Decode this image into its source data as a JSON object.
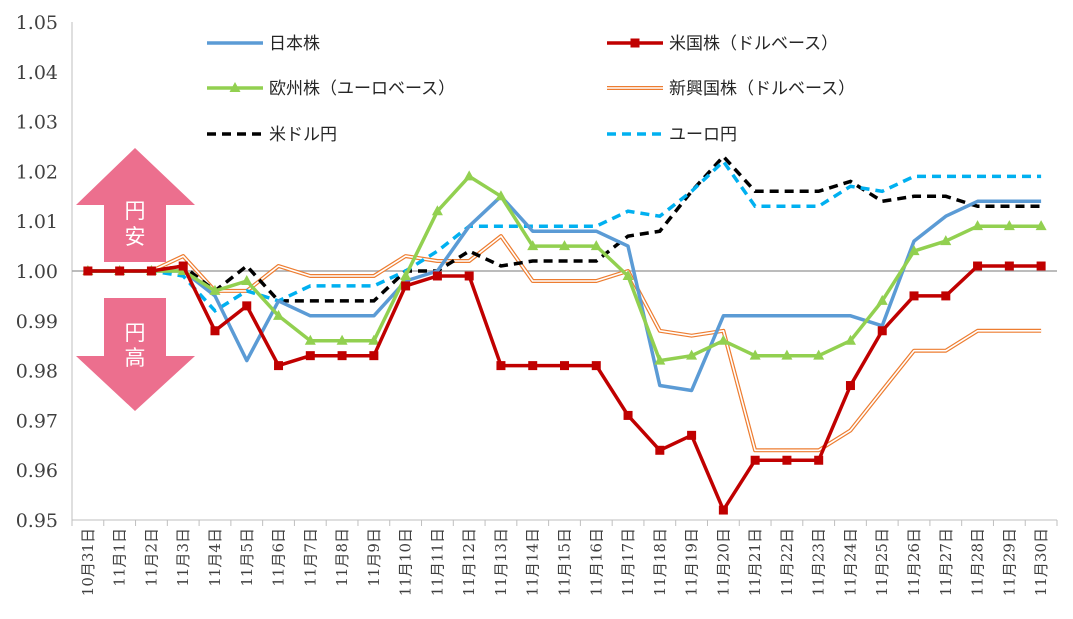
{
  "chart_data": {
    "type": "line",
    "title": "",
    "xlabel": "",
    "ylabel": "",
    "ylim": [
      0.95,
      1.05
    ],
    "yticks": [
      "0.95",
      "0.96",
      "0.97",
      "0.98",
      "0.99",
      "1.00",
      "1.01",
      "1.02",
      "1.03",
      "1.04",
      "1.05"
    ],
    "baseline": 1.0,
    "categories": [
      "10月31日",
      "11月1日",
      "11月2日",
      "11月3日",
      "11月4日",
      "11月5日",
      "11月6日",
      "11月7日",
      "11月8日",
      "11月9日",
      "11月10日",
      "11月11日",
      "11月12日",
      "11月13日",
      "11月14日",
      "11月15日",
      "11月16日",
      "11月17日",
      "11月18日",
      "11月19日",
      "11月20日",
      "11月21日",
      "11月22日",
      "11月23日",
      "11月24日",
      "11月25日",
      "11月26日",
      "11月27日",
      "11月28日",
      "11月29日",
      "11月30日"
    ],
    "series": [
      {
        "name": "日本株",
        "color": "#5b9bd5",
        "style": "solid",
        "values": [
          1.0,
          1.0,
          1.0,
          1.0,
          0.995,
          0.982,
          0.994,
          0.991,
          0.991,
          0.991,
          0.998,
          1.0,
          1.009,
          1.015,
          1.008,
          1.008,
          1.008,
          1.005,
          0.977,
          0.976,
          0.991,
          0.991,
          0.991,
          0.991,
          0.991,
          0.989,
          1.006,
          1.011,
          1.014,
          1.014,
          1.014
        ]
      },
      {
        "name": "米国株（ドルベース）",
        "color": "#c00000",
        "style": "square",
        "values": [
          1.0,
          1.0,
          1.0,
          1.001,
          0.988,
          0.993,
          0.981,
          0.983,
          0.983,
          0.983,
          0.997,
          0.999,
          0.999,
          0.981,
          0.981,
          0.981,
          0.981,
          0.971,
          0.964,
          0.967,
          0.952,
          0.962,
          0.962,
          0.962,
          0.977,
          0.988,
          0.995,
          0.995,
          1.001,
          1.001,
          1.001
        ]
      },
      {
        "name": "欧州株（ユーロベース）",
        "color": "#92d050",
        "style": "triangle",
        "values": [
          1.0,
          1.0,
          1.0,
          1.0,
          0.996,
          0.998,
          0.991,
          0.986,
          0.986,
          0.986,
          0.999,
          1.012,
          1.019,
          1.015,
          1.005,
          1.005,
          1.005,
          0.999,
          0.982,
          0.983,
          0.986,
          0.983,
          0.983,
          0.983,
          0.986,
          0.994,
          1.004,
          1.006,
          1.009,
          1.009,
          1.009
        ]
      },
      {
        "name": "新興国株（ドルベース）",
        "color": "#ed7d31",
        "style": "double",
        "values": [
          1.0,
          1.0,
          1.0,
          1.003,
          0.996,
          0.996,
          1.001,
          0.999,
          0.999,
          0.999,
          1.003,
          1.002,
          1.002,
          1.007,
          0.998,
          0.998,
          0.998,
          1.0,
          0.988,
          0.987,
          0.988,
          0.964,
          0.964,
          0.964,
          0.968,
          0.976,
          0.984,
          0.984,
          0.988,
          0.988,
          0.988
        ]
      },
      {
        "name": "米ドル円",
        "color": "#000000",
        "style": "dash",
        "values": [
          1.0,
          1.0,
          1.0,
          1.001,
          0.996,
          1.001,
          0.994,
          0.994,
          0.994,
          0.994,
          1.0,
          1.0,
          1.004,
          1.001,
          1.002,
          1.002,
          1.002,
          1.007,
          1.008,
          1.016,
          1.023,
          1.016,
          1.016,
          1.016,
          1.018,
          1.014,
          1.015,
          1.015,
          1.013,
          1.013,
          1.013
        ]
      },
      {
        "name": "ユーロ円",
        "color": "#00b0f0",
        "style": "dash",
        "values": [
          1.0,
          1.0,
          1.0,
          0.999,
          0.992,
          0.996,
          0.994,
          0.997,
          0.997,
          0.997,
          1.0,
          1.004,
          1.009,
          1.009,
          1.009,
          1.009,
          1.009,
          1.012,
          1.011,
          1.016,
          1.022,
          1.013,
          1.013,
          1.013,
          1.017,
          1.016,
          1.019,
          1.019,
          1.019,
          1.019,
          1.019
        ]
      }
    ],
    "annotations": {
      "up_label": [
        "円",
        "安"
      ],
      "down_label": [
        "円",
        "高"
      ]
    },
    "legend": "top, two columns",
    "grid": false
  }
}
